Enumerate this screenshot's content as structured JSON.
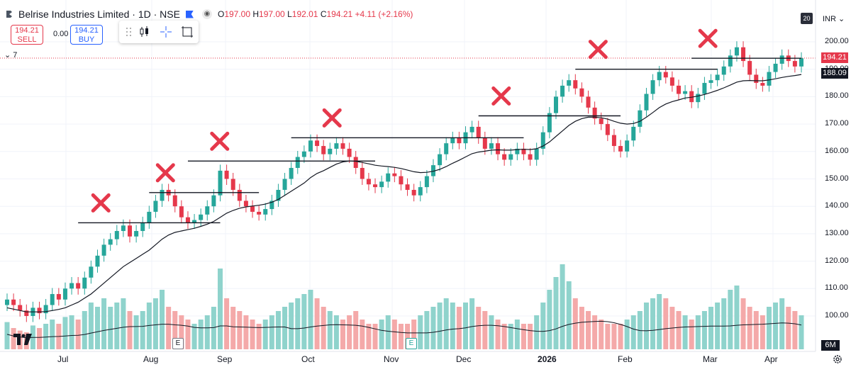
{
  "header": {
    "symbol": "Belrise Industries Limited · 1D · NSE",
    "o_key": "O",
    "o_val": "197.00",
    "h_key": "H",
    "h_val": "197.00",
    "l_key": "L",
    "l_val": "192.01",
    "c_key": "C",
    "c_val": "194.21",
    "change": "+4.11 (+2.16%)"
  },
  "trade": {
    "sell_price": "194.21",
    "sell_label": "SELL",
    "spread": "0.00",
    "buy_price": "194.21",
    "buy_label": "BUY"
  },
  "indicator_toggle": "7",
  "scale_badge": "20",
  "currency": "INR",
  "last_price_label": "194.21",
  "ma_label": "188.09",
  "volume_scale_label": "6M",
  "earnings_marker": "E",
  "colors": {
    "up": "#26a69a",
    "down": "#e5384b",
    "ma": "#131722",
    "annot": "#e5384b",
    "upvol": "#8fd3cc",
    "downvol": "#f4a9a9"
  },
  "chart_data": {
    "type": "candlestick",
    "instrument": "Belrise Industries Limited",
    "interval": "1D",
    "exchange": "NSE",
    "ylim": [
      90,
      206
    ],
    "y_ticks": [
      "200.00",
      "190.00",
      "180.00",
      "170.00",
      "160.00",
      "150.00",
      "140.00",
      "130.00",
      "120.00",
      "110.00",
      "100.00"
    ],
    "x_labels": [
      "Jul",
      "Aug",
      "Sep",
      "Oct",
      "Nov",
      "Dec",
      "2026",
      "Feb",
      "Mar",
      "Apr"
    ],
    "last_close": 194.21,
    "moving_average_last": 188.09,
    "closes": [
      106,
      104,
      102,
      100,
      103,
      101,
      104,
      108,
      106,
      110,
      112,
      110,
      114,
      118,
      122,
      126,
      128,
      131,
      133,
      129,
      131,
      134,
      138,
      142,
      146,
      144,
      140,
      136,
      134,
      135,
      137,
      140,
      144,
      153,
      150,
      146,
      142,
      140,
      138,
      137,
      139,
      142,
      146,
      150,
      154,
      158,
      160,
      164,
      162,
      159,
      161,
      163,
      161,
      158,
      154,
      150,
      148,
      147,
      149,
      152,
      151,
      148,
      146,
      144,
      147,
      151,
      155,
      159,
      163,
      165,
      163,
      167,
      169,
      165,
      161,
      163,
      159,
      157,
      159,
      161,
      159,
      157,
      161,
      167,
      174,
      180,
      184,
      186,
      183,
      180,
      176,
      172,
      170,
      166,
      162,
      160,
      164,
      169,
      175,
      181,
      186,
      189,
      187,
      184,
      181,
      182,
      178,
      181,
      185,
      186,
      188,
      191,
      195,
      198,
      193,
      188,
      185,
      184,
      189,
      192,
      195,
      193,
      191,
      194
    ],
    "ma": [
      103,
      102.5,
      102,
      101.5,
      101.5,
      101.5,
      101.6,
      102,
      102.4,
      103,
      104,
      105,
      106.5,
      108,
      110,
      112,
      114,
      116,
      118,
      119.5,
      121,
      122.5,
      124,
      126,
      128,
      129.5,
      130.5,
      131,
      131.5,
      132,
      132.7,
      133.5,
      134.5,
      136,
      137.5,
      138.5,
      139.3,
      139.8,
      140.1,
      140.4,
      140.8,
      141.5,
      142.5,
      144,
      145.5,
      147,
      148.5,
      150.5,
      152,
      153,
      154.2,
      155.4,
      156.2,
      156.5,
      156.4,
      156,
      155.5,
      155,
      154.7,
      154.5,
      154.2,
      153.8,
      153.2,
      152.6,
      152.3,
      152.4,
      152.8,
      153.5,
      154.5,
      155.7,
      156.8,
      158,
      159.2,
      159.8,
      160.1,
      160.5,
      160.6,
      160.5,
      160.5,
      160.7,
      160.8,
      160.7,
      161,
      162,
      163.5,
      165.5,
      167.5,
      169.5,
      171,
      172,
      172.5,
      172.5,
      172.3,
      171.8,
      171,
      170.3,
      170,
      170.2,
      171,
      172.5,
      174.2,
      176,
      177.3,
      178.2,
      178.8,
      179.5,
      179.8,
      180.2,
      180.8,
      181.5,
      182.3,
      183.2,
      184.2,
      185.3,
      185.8,
      185.9,
      185.8,
      185.8,
      186.1,
      186.5,
      187,
      187.4,
      187.7,
      188.09
    ],
    "volume_ratio": [
      0.32,
      0.25,
      0.22,
      0.2,
      0.28,
      0.25,
      0.3,
      0.35,
      0.3,
      0.38,
      0.4,
      0.35,
      0.45,
      0.55,
      0.5,
      0.6,
      0.5,
      0.55,
      0.6,
      0.45,
      0.4,
      0.45,
      0.55,
      0.6,
      0.7,
      0.5,
      0.45,
      0.4,
      0.35,
      0.3,
      0.35,
      0.4,
      0.5,
      0.95,
      0.6,
      0.5,
      0.45,
      0.4,
      0.35,
      0.3,
      0.35,
      0.4,
      0.45,
      0.5,
      0.55,
      0.6,
      0.65,
      0.7,
      0.6,
      0.5,
      0.45,
      0.4,
      0.35,
      0.4,
      0.45,
      0.35,
      0.3,
      0.3,
      0.35,
      0.4,
      0.35,
      0.3,
      0.3,
      0.35,
      0.4,
      0.45,
      0.5,
      0.55,
      0.6,
      0.55,
      0.5,
      0.55,
      0.6,
      0.5,
      0.45,
      0.4,
      0.35,
      0.3,
      0.3,
      0.35,
      0.3,
      0.3,
      0.4,
      0.55,
      0.7,
      0.85,
      1.0,
      0.8,
      0.6,
      0.5,
      0.45,
      0.4,
      0.35,
      0.3,
      0.3,
      0.3,
      0.35,
      0.4,
      0.45,
      0.55,
      0.6,
      0.65,
      0.6,
      0.5,
      0.45,
      0.4,
      0.35,
      0.4,
      0.45,
      0.5,
      0.55,
      0.6,
      0.7,
      0.75,
      0.6,
      0.5,
      0.45,
      0.4,
      0.5,
      0.55,
      0.6,
      0.5,
      0.45,
      0.4
    ],
    "resistance_lines": [
      {
        "start_index": 11,
        "end_index": 33,
        "price": 134
      },
      {
        "start_index": 22,
        "end_index": 39,
        "price": 145
      },
      {
        "start_index": 28,
        "end_index": 57,
        "price": 156.5
      },
      {
        "start_index": 44,
        "end_index": 80,
        "price": 165
      },
      {
        "start_index": 73,
        "end_index": 95,
        "price": 173
      },
      {
        "start_index": 88,
        "end_index": 110,
        "price": 190
      },
      {
        "start_index": 106,
        "end_index": 123,
        "price": 194
      }
    ]
  }
}
